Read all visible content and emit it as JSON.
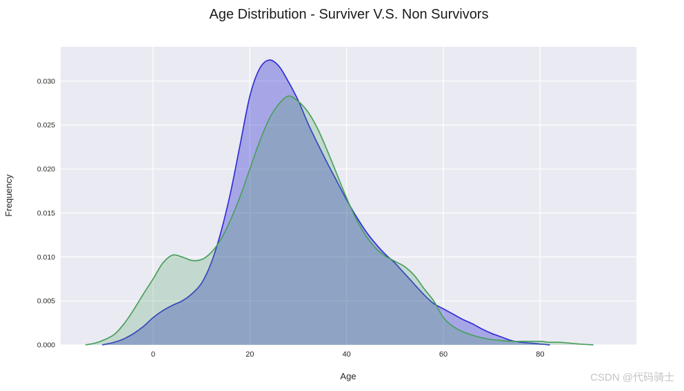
{
  "chart": {
    "title": "Age Distribution - Surviver V.S. Non Survivors",
    "xlabel": "Age",
    "ylabel": "Frequency"
  },
  "watermark": {
    "text": "CSDN @代码骑士"
  },
  "colors": {
    "figure_bg": "#FFFFFF",
    "plot_bg": "#EAEAF2",
    "grid": "#FFFFFF",
    "tick_text": "#262626",
    "title_text": "#1A1A1A",
    "axis_label_text": "#262626",
    "watermark_text": "#C4C4C4"
  },
  "chart_data": {
    "type": "area",
    "subtype": "kde-density",
    "title": "Age Distribution - Surviver V.S. Non Survivors",
    "xlabel": "Age",
    "ylabel": "Frequency",
    "xlim": [
      -19.1,
      99.9
    ],
    "ylim": [
      0,
      0.0339
    ],
    "x_ticks": [
      0,
      20,
      40,
      60,
      80
    ],
    "x_tick_labels": [
      "0",
      "20",
      "40",
      "60",
      "80"
    ],
    "y_ticks": [
      0,
      0.005,
      0.01,
      0.015,
      0.02,
      0.025,
      0.03
    ],
    "y_tick_labels": [
      "0.000",
      "0.005",
      "0.010",
      "0.015",
      "0.020",
      "0.025",
      "0.030"
    ],
    "grid": "on",
    "legend": "none",
    "series": [
      {
        "name": "blue-kde",
        "line_color": "#2E2ED6",
        "fill_color": "#3030D0",
        "fill_opacity": 0.36,
        "peak": {
          "age": 24,
          "density": 0.0324
        },
        "points": [
          [
            -10.5,
            0
          ],
          [
            -8,
            0.0003
          ],
          [
            -6,
            0.0007
          ],
          [
            -4,
            0.0013
          ],
          [
            -2,
            0.0021
          ],
          [
            0,
            0.0031
          ],
          [
            2,
            0.0039
          ],
          [
            4,
            0.0045
          ],
          [
            6,
            0.005
          ],
          [
            8,
            0.0058
          ],
          [
            10,
            0.007
          ],
          [
            12,
            0.0093
          ],
          [
            14,
            0.0128
          ],
          [
            16,
            0.0173
          ],
          [
            18,
            0.0228
          ],
          [
            20,
            0.0283
          ],
          [
            22,
            0.0314
          ],
          [
            24,
            0.0324
          ],
          [
            26,
            0.0317
          ],
          [
            28,
            0.0299
          ],
          [
            30,
            0.0278
          ],
          [
            32,
            0.0252
          ],
          [
            34,
            0.0229
          ],
          [
            36,
            0.0207
          ],
          [
            38,
            0.0186
          ],
          [
            40,
            0.0165
          ],
          [
            42,
            0.0146
          ],
          [
            44,
            0.0129
          ],
          [
            46,
            0.0115
          ],
          [
            48,
            0.0103
          ],
          [
            50,
            0.0093
          ],
          [
            52,
            0.0081
          ],
          [
            54,
            0.0069
          ],
          [
            56,
            0.0057
          ],
          [
            58,
            0.0047
          ],
          [
            60,
            0.0041
          ],
          [
            62,
            0.0035
          ],
          [
            64,
            0.0029
          ],
          [
            66,
            0.0024
          ],
          [
            68,
            0.0018
          ],
          [
            70,
            0.0013
          ],
          [
            72,
            0.0009
          ],
          [
            74,
            0.0005
          ],
          [
            76,
            0.0003
          ],
          [
            78,
            0.0002
          ],
          [
            80,
            0.0001
          ],
          [
            82,
            0
          ]
        ]
      },
      {
        "name": "green-kde",
        "line_color": "#48A05C",
        "fill_color": "#48A05C",
        "fill_opacity": 0.24,
        "peak": {
          "age": 28,
          "density": 0.0283
        },
        "child_bump": {
          "age": 4,
          "density": 0.0102
        },
        "points": [
          [
            -14,
            0
          ],
          [
            -12,
            0.0002
          ],
          [
            -10,
            0.0006
          ],
          [
            -8,
            0.0012
          ],
          [
            -6,
            0.0024
          ],
          [
            -4,
            0.004
          ],
          [
            -2,
            0.0058
          ],
          [
            0,
            0.0075
          ],
          [
            2,
            0.0093
          ],
          [
            4,
            0.0102
          ],
          [
            6,
            0.01
          ],
          [
            8,
            0.0096
          ],
          [
            10,
            0.0097
          ],
          [
            12,
            0.0105
          ],
          [
            14,
            0.012
          ],
          [
            16,
            0.0142
          ],
          [
            18,
            0.0169
          ],
          [
            20,
            0.02
          ],
          [
            22,
            0.0231
          ],
          [
            24,
            0.0257
          ],
          [
            26,
            0.0274
          ],
          [
            28,
            0.0283
          ],
          [
            30,
            0.0277
          ],
          [
            32,
            0.0265
          ],
          [
            34,
            0.0246
          ],
          [
            36,
            0.0221
          ],
          [
            38,
            0.0194
          ],
          [
            40,
            0.0167
          ],
          [
            42,
            0.0143
          ],
          [
            44,
            0.0124
          ],
          [
            46,
            0.011
          ],
          [
            48,
            0.0101
          ],
          [
            50,
            0.0095
          ],
          [
            52,
            0.0089
          ],
          [
            54,
            0.0079
          ],
          [
            56,
            0.0064
          ],
          [
            58,
            0.005
          ],
          [
            60,
            0.0031
          ],
          [
            62,
            0.0021
          ],
          [
            64,
            0.0015
          ],
          [
            66,
            0.0011
          ],
          [
            68,
            0.0008
          ],
          [
            70,
            0.0006
          ],
          [
            72,
            0.0005
          ],
          [
            74,
            0.0004
          ],
          [
            76,
            0.0004
          ],
          [
            78,
            0.0004
          ],
          [
            80,
            0.0004
          ],
          [
            82,
            0.0003
          ],
          [
            84,
            0.0003
          ],
          [
            86,
            0.0002
          ],
          [
            88,
            0.0001
          ],
          [
            91,
            0
          ]
        ]
      }
    ]
  }
}
